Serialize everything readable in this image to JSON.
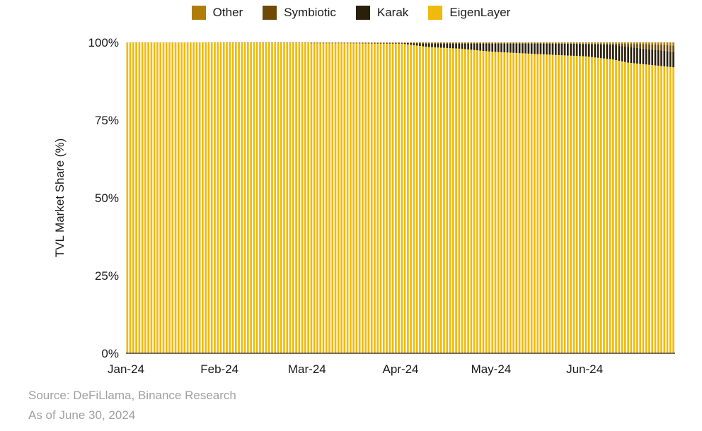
{
  "chart_data": {
    "type": "bar",
    "stacked": true,
    "ylabel": "TVL Market Share (%)",
    "xlabel": "",
    "ylim": [
      0,
      100
    ],
    "y_ticks": [
      "0%",
      "25%",
      "50%",
      "75%",
      "100%"
    ],
    "x_ticks": [
      {
        "label": "Jan-24",
        "date": "2024-01-01"
      },
      {
        "label": "Feb-24",
        "date": "2024-02-01"
      },
      {
        "label": "Mar-24",
        "date": "2024-03-01"
      },
      {
        "label": "Apr-24",
        "date": "2024-04-01"
      },
      {
        "label": "May-24",
        "date": "2024-05-01"
      },
      {
        "label": "Jun-24",
        "date": "2024-06-01"
      }
    ],
    "x_range": [
      "2024-01-01",
      "2024-06-30"
    ],
    "legend_position": "top-center",
    "grid": false,
    "series": [
      {
        "name": "EigenLayer",
        "color": "#F0B90B"
      },
      {
        "name": "Karak",
        "color": "#2A1F0A"
      },
      {
        "name": "Symbiotic",
        "color": "#6E4A06"
      },
      {
        "name": "Other",
        "color": "#B07D09"
      }
    ],
    "daily": [
      {
        "date": "2024-01-01",
        "EigenLayer": 100.0,
        "Karak": 0.0,
        "Symbiotic": 0.0,
        "Other": 0.0
      },
      {
        "date": "2024-03-01",
        "EigenLayer": 99.8,
        "Karak": 0.0,
        "Symbiotic": 0.0,
        "Other": 0.2
      },
      {
        "date": "2024-04-01",
        "EigenLayer": 99.6,
        "Karak": 0.2,
        "Symbiotic": 0.0,
        "Other": 0.2
      },
      {
        "date": "2024-04-10",
        "EigenLayer": 98.5,
        "Karak": 1.2,
        "Symbiotic": 0.0,
        "Other": 0.3
      },
      {
        "date": "2024-04-20",
        "EigenLayer": 98.0,
        "Karak": 1.7,
        "Symbiotic": 0.0,
        "Other": 0.3
      },
      {
        "date": "2024-05-01",
        "EigenLayer": 97.0,
        "Karak": 2.7,
        "Symbiotic": 0.0,
        "Other": 0.3
      },
      {
        "date": "2024-05-15",
        "EigenLayer": 96.3,
        "Karak": 3.4,
        "Symbiotic": 0.0,
        "Other": 0.3
      },
      {
        "date": "2024-06-01",
        "EigenLayer": 95.5,
        "Karak": 4.0,
        "Symbiotic": 0.1,
        "Other": 0.4
      },
      {
        "date": "2024-06-10",
        "EigenLayer": 94.5,
        "Karak": 4.6,
        "Symbiotic": 0.5,
        "Other": 0.4
      },
      {
        "date": "2024-06-15",
        "EigenLayer": 93.5,
        "Karak": 5.0,
        "Symbiotic": 1.0,
        "Other": 0.5
      },
      {
        "date": "2024-06-20",
        "EigenLayer": 93.0,
        "Karak": 5.0,
        "Symbiotic": 1.5,
        "Other": 0.5
      },
      {
        "date": "2024-06-30",
        "EigenLayer": 92.0,
        "Karak": 5.0,
        "Symbiotic": 2.0,
        "Other": 1.0
      }
    ]
  },
  "legend": [
    {
      "name": "Other",
      "color": "#B07D09"
    },
    {
      "name": "Symbiotic",
      "color": "#6E4A06"
    },
    {
      "name": "Karak",
      "color": "#2A1F0A"
    },
    {
      "name": "EigenLayer",
      "color": "#F0B90B"
    }
  ],
  "footer": {
    "source": "Source: DeFiLlama, Binance Research",
    "as_of": "As of June 30, 2024"
  }
}
